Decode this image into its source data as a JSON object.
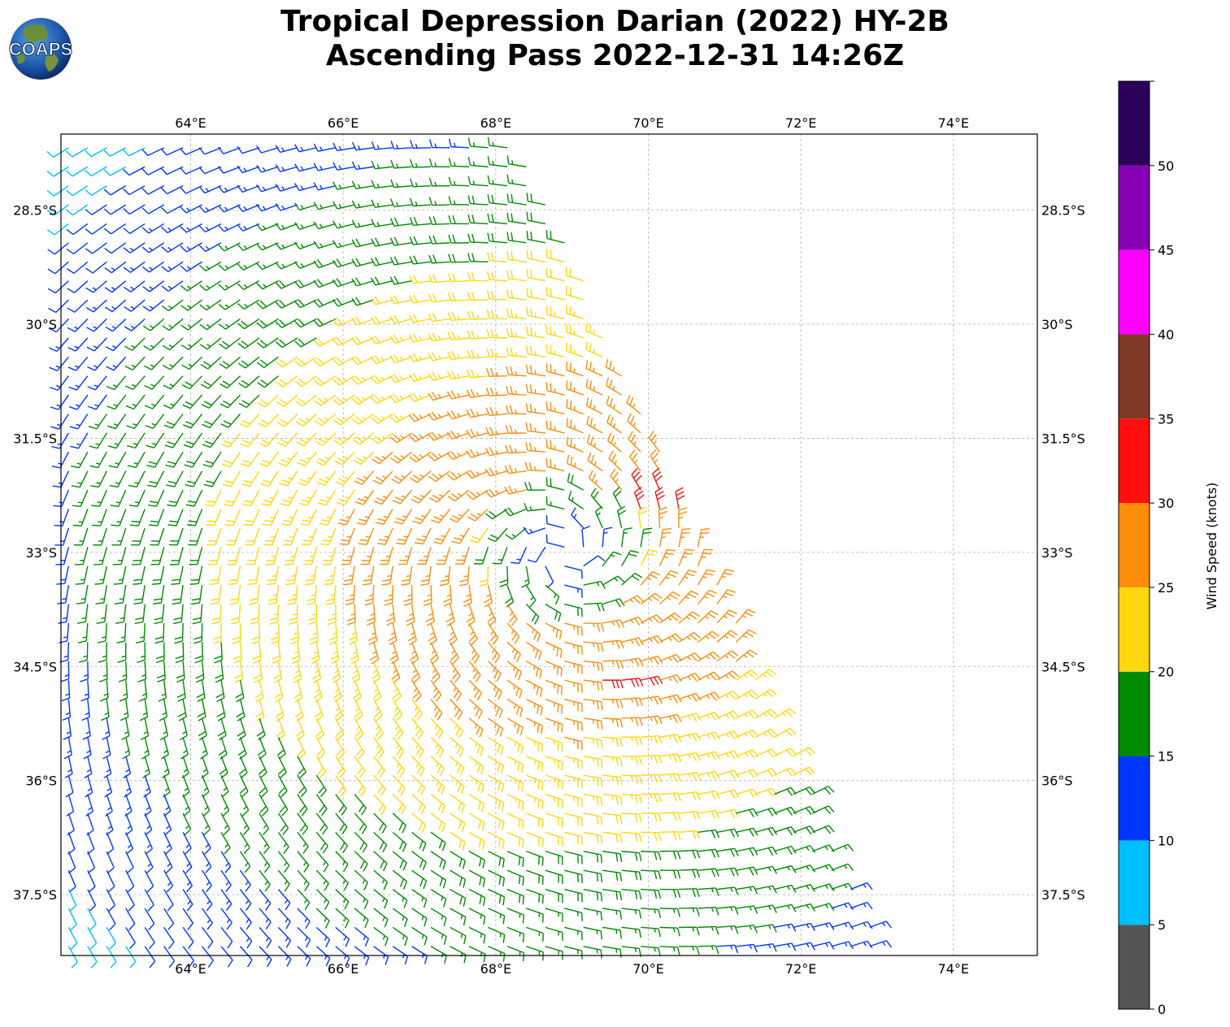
{
  "header": {
    "title_line1": "Tropical Depression Darian (2022) HY-2B",
    "title_line2": "Ascending Pass 2022-12-31 14:26Z",
    "logo_text": "COAPS"
  },
  "map": {
    "lon_ticks": [
      "64°E",
      "66°E",
      "68°E",
      "70°E",
      "72°E",
      "74°E"
    ],
    "lat_ticks": [
      "28.5°S",
      "30°S",
      "31.5°S",
      "33°S",
      "34.5°S",
      "36°S",
      "37.5°S"
    ],
    "lon_range": [
      62.3,
      75.1
    ],
    "lat_range": [
      -38.3,
      -27.5
    ],
    "gridlines": true,
    "storm_center": {
      "lon": 68.9,
      "lat": -33.0
    }
  },
  "colorbar": {
    "label": "Wind Speed (knots)",
    "ticks": [
      "0",
      "5",
      "10",
      "15",
      "20",
      "25",
      "30",
      "35",
      "40",
      "45",
      "50"
    ],
    "bins": [
      {
        "min": 0,
        "max": 5,
        "color": "#555555"
      },
      {
        "min": 5,
        "max": 10,
        "color": "#00bfff"
      },
      {
        "min": 10,
        "max": 15,
        "color": "#0037ff"
      },
      {
        "min": 15,
        "max": 20,
        "color": "#008c00"
      },
      {
        "min": 20,
        "max": 25,
        "color": "#ffd70f"
      },
      {
        "min": 25,
        "max": 30,
        "color": "#ff8c0a"
      },
      {
        "min": 30,
        "max": 35,
        "color": "#ff0f0f"
      },
      {
        "min": 35,
        "max": 40,
        "color": "#7f3a27"
      },
      {
        "min": 40,
        "max": 45,
        "color": "#ff00ff"
      },
      {
        "min": 45,
        "max": 50,
        "color": "#8800b4"
      },
      {
        "min": 50,
        "max": 55,
        "color": "#2a005a"
      }
    ]
  }
}
